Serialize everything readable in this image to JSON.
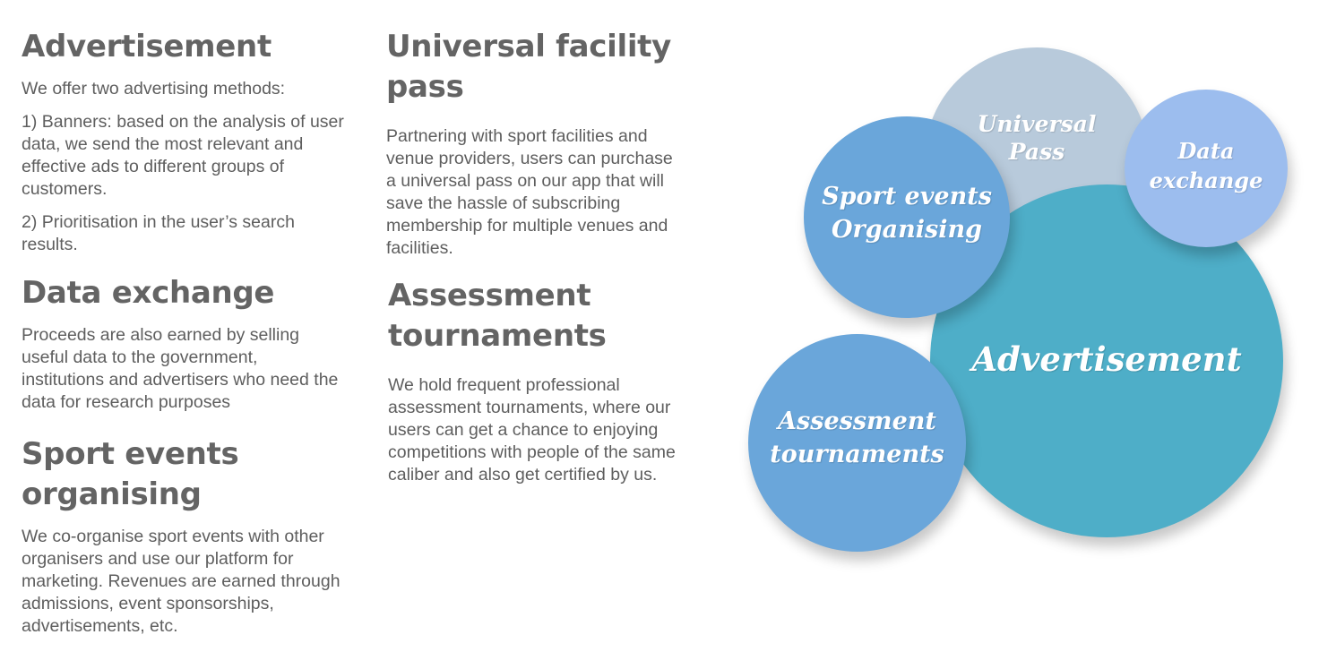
{
  "sections": {
    "advertisement": {
      "title": "Advertisement",
      "intro": "We offer two advertising methods:",
      "point1": "1) Banners: based on the analysis of user data, we send the most relevant and effective ads to different groups of customers.",
      "point2": "2) Prioritisation in the user’s search results."
    },
    "data_exchange": {
      "title": "Data exchange",
      "body": "Proceeds are also earned by selling useful data to the government, institutions and advertisers who need the data for research purposes"
    },
    "sport_events": {
      "title": "Sport events organising",
      "body": "We co-organise sport events with other organisers and use our platform for marketing. Revenues are earned through admissions, event sponsorships, advertisements, etc."
    },
    "universal_pass": {
      "title": "Universal facility pass",
      "body": "Partnering with sport facilities and venue providers, users can purchase a universal pass on our app that will save the hassle of subscribing membership for multiple venues and facilities."
    },
    "assessment": {
      "title": "Assessment tournaments",
      "body": "We hold frequent professional assessment tournaments, where our users can get a chance to enjoying competitions with people of the same caliber and also get certified by us."
    }
  },
  "diagram": {
    "bubbles": {
      "universal_pass": {
        "label": "Universal\nPass",
        "color": "#b8cadb"
      },
      "advertisement": {
        "label": "Advertisement",
        "color": "#4eaec8"
      },
      "sport_events": {
        "label": "Sport events\nOrganising",
        "color": "#6aa6da"
      },
      "data_exchange": {
        "label": "Data\nexchange",
        "color": "#9cbdee"
      },
      "assessment": {
        "label": "Assessment\ntournaments",
        "color": "#6aa6da"
      }
    }
  }
}
